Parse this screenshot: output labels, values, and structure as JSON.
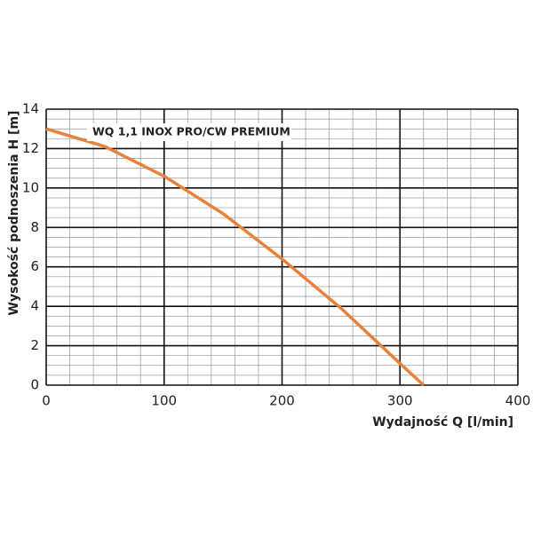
{
  "chart_data": {
    "type": "line",
    "x_label": "Wydajność Q [l/min]",
    "y_label": "Wysokość podnoszenia H [m]",
    "x": [
      0,
      50,
      100,
      150,
      200,
      250,
      300,
      320
    ],
    "series": [
      {
        "name": "WQ 1,1 INOX PRO/CW PREMIUM",
        "color": "#e8823a",
        "values": [
          13,
          12.1,
          10.6,
          8.7,
          6.4,
          3.9,
          1.1,
          0
        ]
      }
    ],
    "xlim": [
      0,
      400
    ],
    "xticks": [
      0,
      100,
      200,
      300,
      400
    ],
    "ylim": [
      0,
      14
    ],
    "yticks": [
      0,
      2,
      4,
      6,
      8,
      10,
      12,
      14
    ],
    "grid": true,
    "minor_step_x": 20,
    "minor_step_y": 0.5
  }
}
